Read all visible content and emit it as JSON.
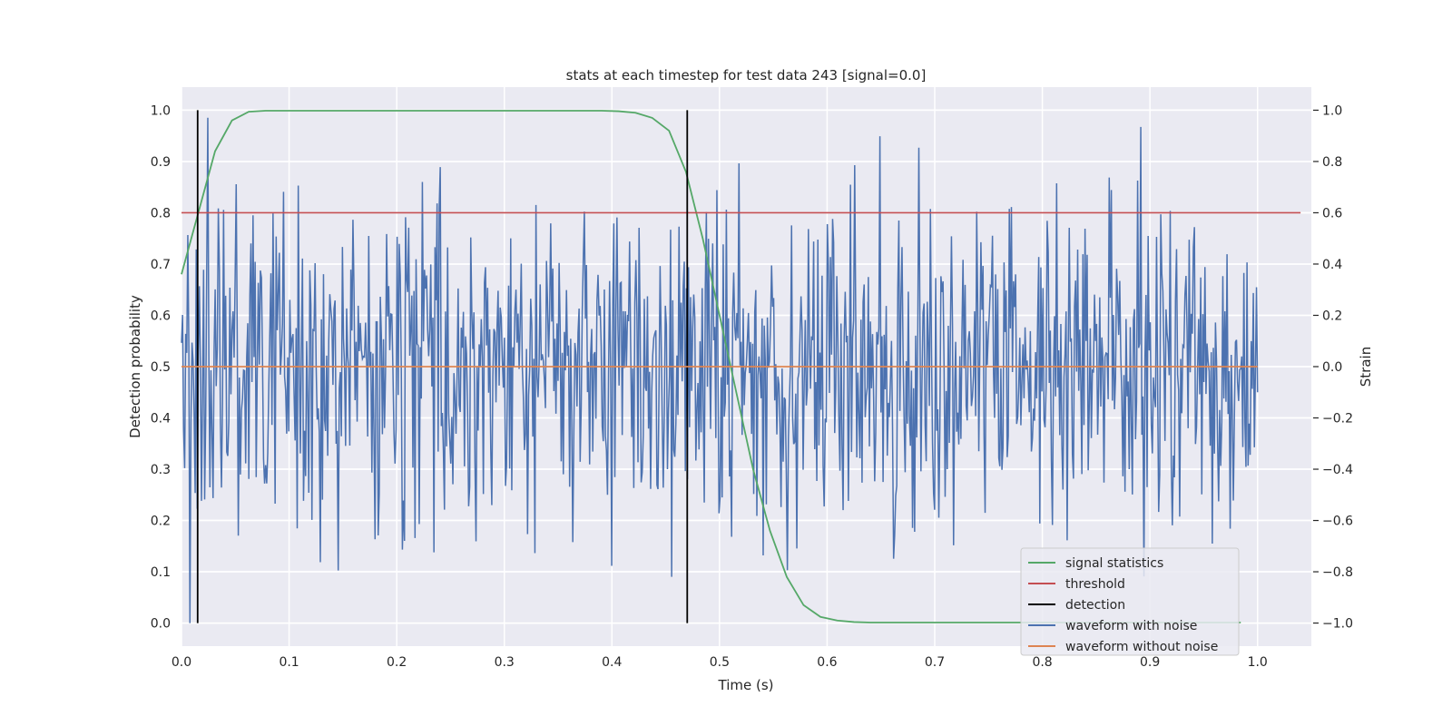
{
  "chart_data": {
    "type": "line",
    "title": "stats at each timestep for test data 243 [signal=0.0]",
    "xlabel": "Time (s)",
    "ylabel_left": "Detection probability",
    "ylabel_right": "Strain",
    "xlim": [
      0.0,
      1.05
    ],
    "ylim_left": [
      -0.045,
      1.045
    ],
    "ylim_right": [
      -1.09,
      1.09
    ],
    "x_ticks": [
      "0.0",
      "0.1",
      "0.2",
      "0.3",
      "0.4",
      "0.5",
      "0.6",
      "0.7",
      "0.8",
      "0.9",
      "1.0"
    ],
    "y_ticks_left": [
      "0.0",
      "0.1",
      "0.2",
      "0.3",
      "0.4",
      "0.5",
      "0.6",
      "0.7",
      "0.8",
      "0.9",
      "1.0"
    ],
    "y_ticks_right": [
      "−1.0",
      "−0.8",
      "−0.6",
      "−0.4",
      "−0.2",
      "0.0",
      "0.2",
      "0.4",
      "0.6",
      "0.8",
      "1.0"
    ],
    "grid": true,
    "legend_position": "lower-right",
    "colors": {
      "signal_statistics": "#55a868",
      "threshold": "#c44e52",
      "detection": "#000000",
      "waveform_with_noise": "#4c72b0",
      "waveform_without_noise": "#dd8452"
    },
    "series": [
      {
        "name": "signal statistics",
        "axis": "left",
        "x": [
          0.0,
          0.0156,
          0.0312,
          0.0469,
          0.0625,
          0.0781,
          0.0938,
          0.1094,
          0.125,
          0.1406,
          0.1562,
          0.1719,
          0.1875,
          0.2031,
          0.2188,
          0.2344,
          0.25,
          0.2656,
          0.2812,
          0.2969,
          0.3125,
          0.3281,
          0.3438,
          0.3594,
          0.375,
          0.3906,
          0.4062,
          0.4219,
          0.4375,
          0.4531,
          0.4688,
          0.4844,
          0.5,
          0.5156,
          0.5312,
          0.5469,
          0.5625,
          0.5781,
          0.5938,
          0.6094,
          0.625,
          0.6406,
          0.6562,
          0.6719,
          0.6875,
          0.7031,
          0.7188,
          0.7344,
          0.75,
          0.7656,
          0.7812,
          0.7969,
          0.8125,
          0.8281,
          0.8438,
          0.8594,
          0.875,
          0.8906,
          0.9062,
          0.9219,
          0.9375,
          0.9531,
          0.9688,
          0.9844
        ],
        "values": [
          0.68,
          0.8,
          0.92,
          0.98,
          0.997,
          0.999,
          0.999,
          0.999,
          0.999,
          0.999,
          0.999,
          0.999,
          0.999,
          0.999,
          0.999,
          0.999,
          0.999,
          0.999,
          0.999,
          0.999,
          0.999,
          0.999,
          0.999,
          0.999,
          0.999,
          0.999,
          0.998,
          0.995,
          0.985,
          0.96,
          0.88,
          0.75,
          0.6,
          0.45,
          0.3,
          0.18,
          0.09,
          0.035,
          0.012,
          0.005,
          0.002,
          0.001,
          0.001,
          0.001,
          0.001,
          0.001,
          0.001,
          0.001,
          0.001,
          0.001,
          0.001,
          0.001,
          0.001,
          0.001,
          0.001,
          0.001,
          0.001,
          0.001,
          0.001,
          0.001,
          0.001,
          0.001,
          0.001,
          0.001
        ]
      },
      {
        "name": "threshold",
        "axis": "left",
        "x": [
          0.0,
          1.04
        ],
        "values": [
          0.8,
          0.8
        ]
      },
      {
        "name": "detection",
        "axis": "left",
        "x": [
          0.015,
          0.47
        ],
        "values": [
          [
            0.0,
            1.0
          ],
          [
            0.0,
            1.0
          ]
        ]
      },
      {
        "name": "waveform with noise",
        "axis": "right",
        "x_range": [
          0.0,
          1.0
        ],
        "num_points": 1024,
        "min": -1.0,
        "max": 1.0
      },
      {
        "name": "waveform without noise",
        "axis": "right",
        "x": [
          0.0,
          1.0
        ],
        "values": [
          0.0,
          0.0
        ]
      }
    ]
  }
}
